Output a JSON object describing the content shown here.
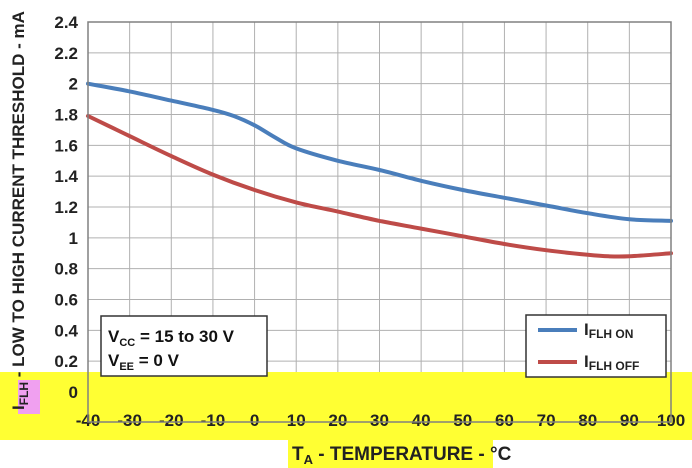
{
  "chart_data": {
    "type": "line",
    "ylabel_main": "I",
    "ylabel_sub": "FLH",
    "ylabel_rest": " - LOW TO HIGH CURRENT THRESHOLD - mA",
    "xlabel_main": "T",
    "xlabel_sub": "A",
    "xlabel_rest": " - TEMPERATURE - °C",
    "xlim": [
      -40,
      100
    ],
    "ylim": [
      0,
      2.4
    ],
    "grid": true,
    "xticks": [
      "-40",
      "-30",
      "-20",
      "-10",
      "0",
      "10",
      "20",
      "30",
      "40",
      "50",
      "60",
      "70",
      "80",
      "90",
      "100"
    ],
    "xtick_values": [
      -40,
      -30,
      -20,
      -10,
      0,
      10,
      20,
      30,
      40,
      50,
      60,
      70,
      80,
      90,
      100
    ],
    "yticks": [
      "0",
      "0.2",
      "0.4",
      "0.6",
      "0.8",
      "1",
      "1.2",
      "1.4",
      "1.6",
      "1.8",
      "2",
      "2.2",
      "2.4"
    ],
    "ytick_values": [
      0,
      0.2,
      0.4,
      0.6,
      0.8,
      1.0,
      1.2,
      1.4,
      1.6,
      1.8,
      2.0,
      2.2,
      2.4
    ],
    "series": [
      {
        "name_main": "I",
        "name_sub": "FLH ON",
        "color": "#4a7ebb",
        "x": [
          -40,
          -30,
          -20,
          -10,
          -5,
          0,
          5,
          10,
          20,
          30,
          40,
          50,
          60,
          70,
          80,
          90,
          100
        ],
        "y": [
          2.0,
          1.95,
          1.89,
          1.83,
          1.79,
          1.73,
          1.65,
          1.58,
          1.5,
          1.44,
          1.37,
          1.31,
          1.26,
          1.21,
          1.16,
          1.12,
          1.11
        ]
      },
      {
        "name_main": "I",
        "name_sub": "FLH OFF",
        "color": "#be4b48",
        "x": [
          -40,
          -30,
          -20,
          -10,
          0,
          10,
          20,
          30,
          40,
          50,
          60,
          70,
          80,
          85,
          90,
          100
        ],
        "y": [
          1.79,
          1.66,
          1.53,
          1.41,
          1.31,
          1.23,
          1.17,
          1.11,
          1.06,
          1.01,
          0.96,
          0.92,
          0.89,
          0.88,
          0.88,
          0.9
        ]
      }
    ],
    "conditions": [
      {
        "main": "V",
        "sub": "CC",
        "rest": " = 15 to 30 V"
      },
      {
        "main": "V",
        "sub": "EE",
        "rest": " = 0 V"
      }
    ]
  },
  "colors": {
    "grid": "#b0b0b0",
    "frame": "#808080",
    "highlight": "#ffff33",
    "magenta": "#f0a0f0"
  }
}
